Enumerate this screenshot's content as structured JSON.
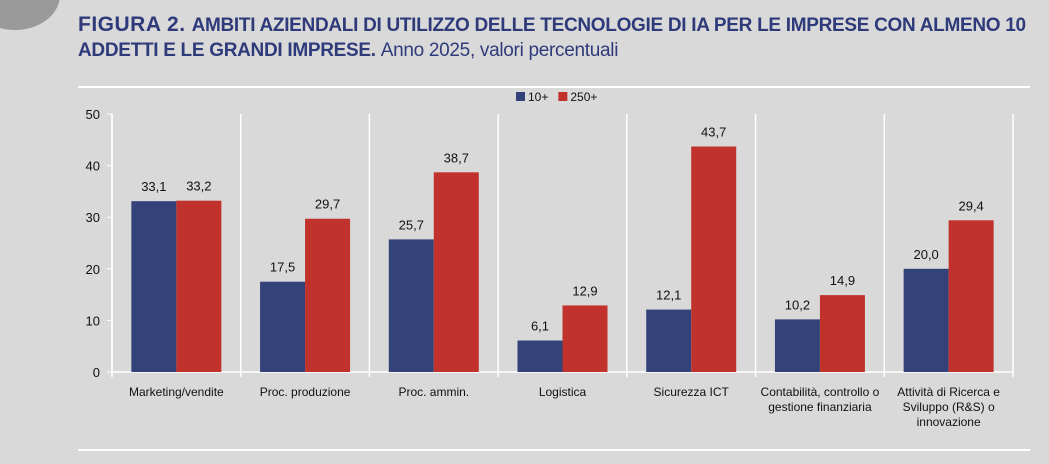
{
  "title": {
    "label": "FIGURA 2.",
    "main": "AMBITI AZIENDALI DI UTILIZZO DELLE TECNOLOGIE DI IA  PER LE IMPRESE CON ALMENO 10 ADDETTI E LE GRANDI IMPRESE.",
    "sub": "Anno 2025, valori percentuali"
  },
  "chart_data": {
    "type": "bar",
    "categories": [
      [
        "Marketing/vendite"
      ],
      [
        "Proc. produzione"
      ],
      [
        "Proc. ammin."
      ],
      [
        "Logistica"
      ],
      [
        "Sicurezza ICT"
      ],
      [
        "Contabilità, controllo o",
        "gestione finanziaria"
      ],
      [
        "Attività di Ricerca e",
        "Sviluppo (R&S) o",
        "innovazione"
      ]
    ],
    "series": [
      {
        "name": "10+",
        "color": "#34427a",
        "values": [
          33.1,
          17.5,
          25.7,
          6.1,
          12.1,
          10.2,
          20.0
        ],
        "labels": [
          "33,1",
          "17,5",
          "25,7",
          "6,1",
          "12,1",
          "10,2",
          "20,0"
        ]
      },
      {
        "name": "250+",
        "color": "#c0322b",
        "values": [
          33.2,
          29.7,
          38.7,
          12.9,
          43.7,
          14.9,
          29.4
        ],
        "labels": [
          "33,2",
          "29,7",
          "38,7",
          "12,9",
          "43,7",
          "14,9",
          "29,4"
        ]
      }
    ],
    "ylim": [
      0,
      50
    ],
    "yticks": [
      "0",
      "10",
      "20",
      "30",
      "40",
      "50"
    ],
    "legend": "top-center",
    "grid": false
  }
}
